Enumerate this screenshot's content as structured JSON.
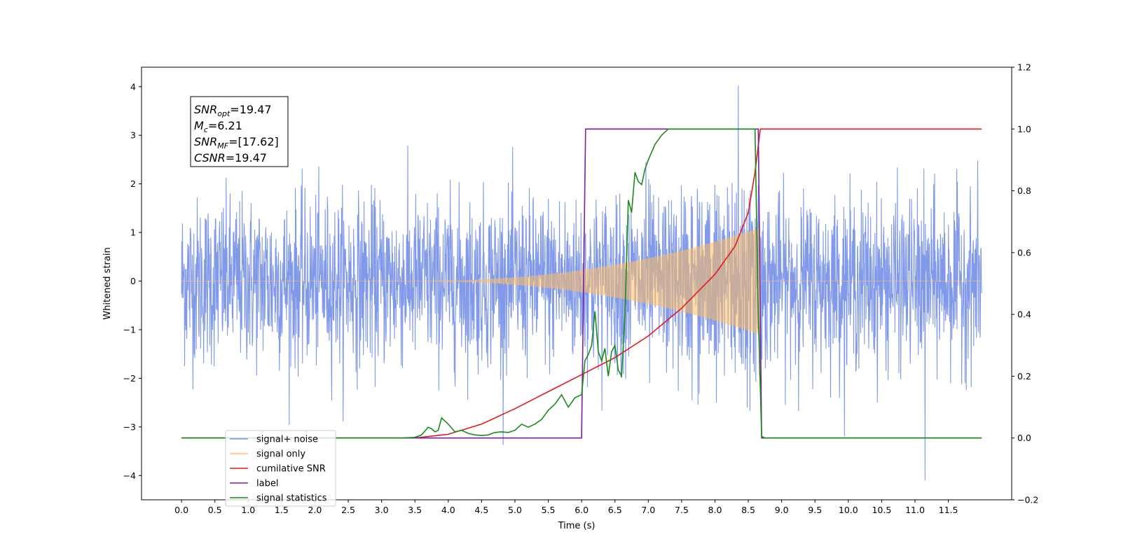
{
  "chart_data": {
    "type": "line",
    "xlabel": "Time (s)",
    "ylabel": "Whitened strain",
    "xlim": [
      -0.6,
      12.45
    ],
    "ylim": [
      -4.5,
      4.4
    ],
    "y2lim": [
      -0.2,
      1.2
    ],
    "x_ticks": [
      "0.0",
      "0.5",
      "1.0",
      "1.5",
      "2.0",
      "2.5",
      "3.0",
      "3.5",
      "4.0",
      "4.5",
      "5.0",
      "5.5",
      "6.0",
      "6.5",
      "7.0",
      "7.5",
      "8.0",
      "8.5",
      "9.0",
      "9.5",
      "10.0",
      "10.5",
      "11.0",
      "11.5"
    ],
    "y_ticks": [
      "4",
      "3",
      "2",
      "1",
      "0",
      "−1",
      "−2",
      "−3",
      "−4"
    ],
    "y2_ticks": [
      "1.2",
      "1.0",
      "0.8",
      "0.6",
      "0.4",
      "0.2",
      "0.0",
      "−0.2"
    ],
    "grid": false,
    "legend_position": "lower-left",
    "annotation": {
      "lines": [
        {
          "symbol": "SNR",
          "sub": "opt",
          "value": "=19.47"
        },
        {
          "symbol": "M",
          "sub": "c",
          "value": "=6.21"
        },
        {
          "symbol": "SNR",
          "sub": "MF",
          "value": "=[17.62]"
        },
        {
          "symbol": "CSNR",
          "sub": "",
          "value": "=19.47"
        }
      ]
    },
    "series": [
      {
        "name": "signal+ noise",
        "color": "#7a93e8",
        "axis": "left",
        "noise_std": 0.85,
        "duration": [
          0,
          12
        ],
        "x_extreme": [
          8.35,
          4.02
        ],
        "x_min_extreme": [
          11.15,
          -4.1
        ]
      },
      {
        "name": "signal only",
        "color": "#ffbe60",
        "axis": "left",
        "chirp_start": 3.5,
        "chirp_end": 8.68,
        "peak_amplitude": 1.2
      },
      {
        "name": "cumilative SNR",
        "color": "#e31a1c",
        "axis": "right",
        "x": [
          0.0,
          3.5,
          4.0,
          4.5,
          5.0,
          5.5,
          6.0,
          6.5,
          7.0,
          7.5,
          8.0,
          8.3,
          8.5,
          8.6,
          8.68,
          8.72,
          12.0
        ],
        "y": [
          0.0,
          0.0,
          0.012,
          0.045,
          0.095,
          0.15,
          0.205,
          0.26,
          0.33,
          0.42,
          0.53,
          0.62,
          0.73,
          0.86,
          1.0,
          1.0,
          1.0
        ]
      },
      {
        "name": "label",
        "color": "#7b1fa2",
        "axis": "right",
        "x": [
          0.0,
          6.0,
          6.06,
          8.65,
          8.7,
          12.0
        ],
        "y": [
          0.0,
          0.0,
          1.0,
          1.0,
          0.0,
          0.0
        ]
      },
      {
        "name": "signal statistics",
        "color": "#1a8a1a",
        "axis": "right",
        "x": [
          0.0,
          3.3,
          3.5,
          3.6,
          3.7,
          3.75,
          3.8,
          3.85,
          3.9,
          3.95,
          4.0,
          4.1,
          4.2,
          4.3,
          4.4,
          4.5,
          4.6,
          4.7,
          4.8,
          4.9,
          5.0,
          5.1,
          5.2,
          5.3,
          5.4,
          5.5,
          5.6,
          5.7,
          5.8,
          5.9,
          6.0,
          6.05,
          6.1,
          6.15,
          6.2,
          6.25,
          6.3,
          6.35,
          6.4,
          6.45,
          6.5,
          6.55,
          6.6,
          6.65,
          6.7,
          6.75,
          6.8,
          6.85,
          6.9,
          6.95,
          7.0,
          7.1,
          7.2,
          7.3,
          7.4,
          7.5,
          7.6,
          7.8,
          8.0,
          8.2,
          8.4,
          8.6,
          8.65,
          8.7,
          8.75,
          8.8,
          12.0
        ],
        "y": [
          0.0,
          0.0,
          0.002,
          0.01,
          0.035,
          0.03,
          0.02,
          0.025,
          0.065,
          0.055,
          0.045,
          0.02,
          0.025,
          0.015,
          0.01,
          0.008,
          0.01,
          0.018,
          0.02,
          0.018,
          0.025,
          0.045,
          0.035,
          0.045,
          0.06,
          0.09,
          0.11,
          0.14,
          0.1,
          0.13,
          0.14,
          0.25,
          0.27,
          0.3,
          0.41,
          0.28,
          0.25,
          0.29,
          0.2,
          0.28,
          0.3,
          0.22,
          0.2,
          0.4,
          0.77,
          0.73,
          0.86,
          0.83,
          0.82,
          0.87,
          0.9,
          0.95,
          0.98,
          1.0,
          1.0,
          1.0,
          1.0,
          1.0,
          1.0,
          1.0,
          1.0,
          1.0,
          0.4,
          0.005,
          0.0,
          0.0,
          0.0
        ]
      }
    ]
  }
}
